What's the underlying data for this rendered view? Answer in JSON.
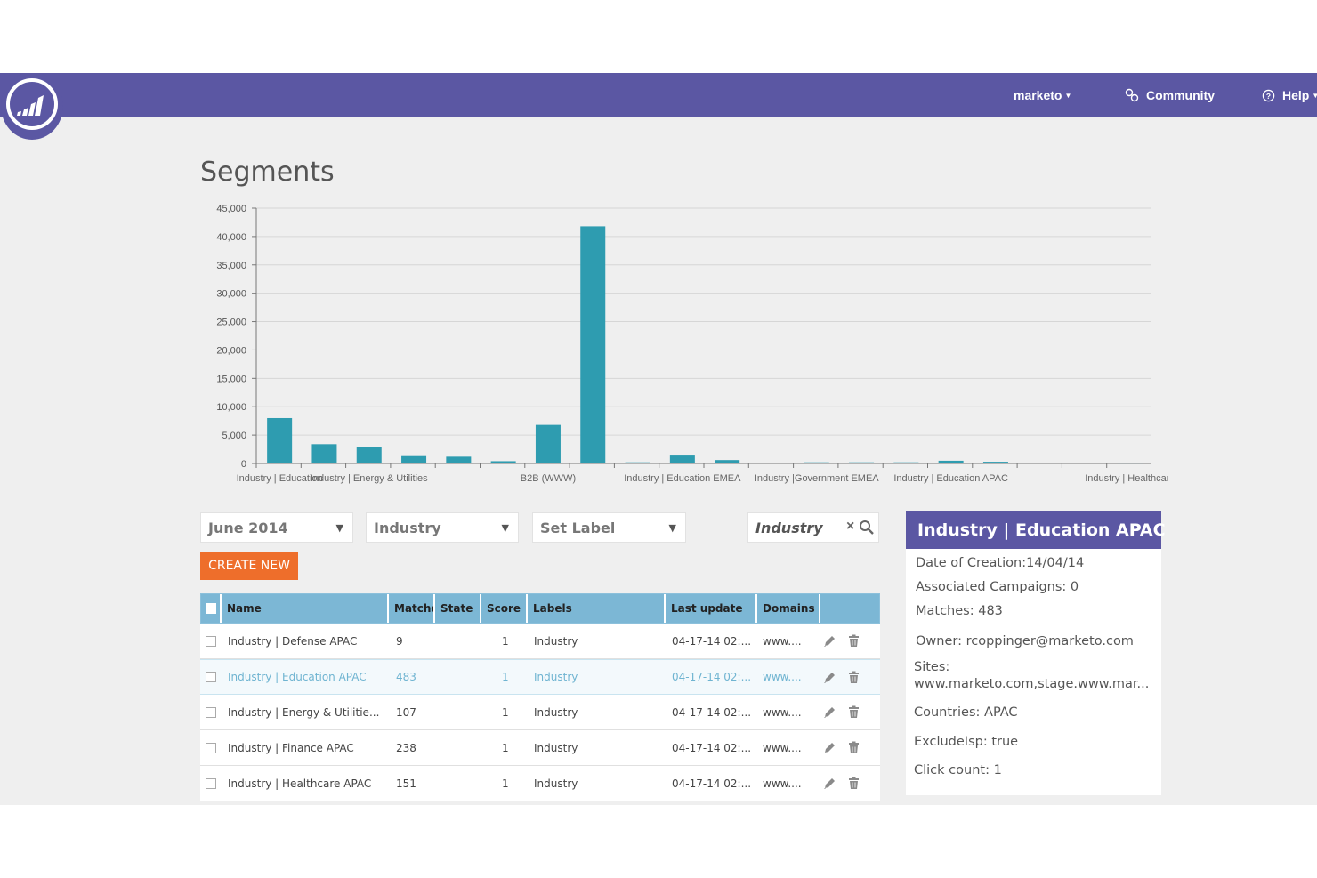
{
  "topbar": {
    "user_menu": "marketo",
    "community": "Community",
    "help": "Help"
  },
  "page": {
    "title": "Segments"
  },
  "chart_data": {
    "type": "bar",
    "title": "",
    "xlabel": "",
    "ylabel": "",
    "ylim": [
      0,
      45000
    ],
    "yticks": [
      "45,000",
      "40,000",
      "35,000",
      "30,000",
      "25,000",
      "20,000",
      "15,000",
      "10,000",
      "5,000",
      "0"
    ],
    "grid": true,
    "categories": [
      "Industry | Education",
      "",
      "Industry | Energy & Utilities",
      "",
      "",
      "",
      "B2B (WWW)",
      "",
      "",
      "Industry | Education EMEA",
      "",
      "",
      "Industry |Government EMEA",
      "",
      "",
      "Industry | Education APAC",
      "",
      "",
      "",
      "Industry | Healthcare"
    ],
    "values": [
      8000,
      3400,
      2900,
      1300,
      1200,
      400,
      6800,
      41800,
      200,
      1400,
      600,
      0,
      200,
      200,
      200,
      483,
      300,
      0,
      0,
      150
    ],
    "color": "#2e9cb0"
  },
  "filters": {
    "period": "June 2014",
    "category": "Industry",
    "label": "Set Label",
    "search_value": "Industry"
  },
  "create_button": "CREATE NEW",
  "table": {
    "headers": [
      "Name",
      "Matches",
      "State",
      "Score",
      "Labels",
      "Last update",
      "Domains"
    ],
    "rows": [
      {
        "name": "Industry | Defense APAC",
        "matches": "9",
        "score": "1",
        "labels": "Industry",
        "updated": "04-17-14 02:...",
        "domains": "www...."
      },
      {
        "name": "Industry | Education APAC",
        "matches": "483",
        "score": "1",
        "labels": "Industry",
        "updated": "04-17-14 02:...",
        "domains": "www...."
      },
      {
        "name": "Industry | Energy & Utilitie...",
        "matches": "107",
        "score": "1",
        "labels": "Industry",
        "updated": "04-17-14 02:...",
        "domains": "www...."
      },
      {
        "name": "Industry | Finance APAC",
        "matches": "238",
        "score": "1",
        "labels": "Industry",
        "updated": "04-17-14 02:...",
        "domains": "www...."
      },
      {
        "name": "Industry | Healthcare APAC",
        "matches": "151",
        "score": "1",
        "labels": "Industry",
        "updated": "04-17-14 02:...",
        "domains": "www...."
      }
    ]
  },
  "detail": {
    "title": "Industry | Education APAC",
    "created": "Date of Creation:14/04/14",
    "campaigns": "Associated Campaigns: 0",
    "matches": "Matches: 483",
    "owner": "Owner: rcoppinger@marketo.com",
    "sites_label": "Sites:",
    "sites_value": "www.marketo.com,stage.www.mar...",
    "countries": "Countries: APAC",
    "exclude": "ExcludeIsp: true",
    "clicks": "Click count: 1"
  }
}
